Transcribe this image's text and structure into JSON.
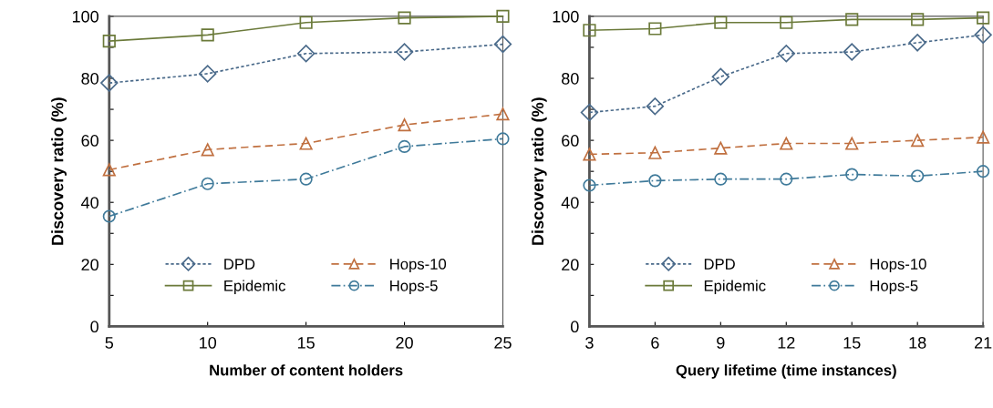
{
  "chart_data": [
    {
      "type": "line",
      "xlabel": "Number of content holders",
      "ylabel": "Discovery ratio (%)",
      "x": [
        5,
        10,
        15,
        20,
        25
      ],
      "xlim": [
        5,
        25
      ],
      "xticks": [
        5,
        10,
        15,
        20,
        25
      ],
      "ylim": [
        0,
        100
      ],
      "yticks": [
        0,
        {
          "value": 10,
          "label": null
        },
        20,
        {
          "value": 30,
          "label": null
        },
        40,
        {
          "value": 50,
          "label": null
        },
        60,
        {
          "value": 70,
          "label": null
        },
        80,
        {
          "value": 90,
          "label": null
        },
        100
      ],
      "grid": false,
      "legend": "bottom",
      "series": [
        {
          "name": "DPD",
          "color": "#4a6a8a",
          "marker": "diamond",
          "line_style": "dotted",
          "values": [
            78.5,
            81.5,
            88,
            88.5,
            91
          ]
        },
        {
          "name": "Epidemic",
          "color": "#6b7a3a",
          "marker": "square",
          "line_style": "solid",
          "values": [
            92,
            94,
            98,
            99.5,
            100
          ]
        },
        {
          "name": "Hops-10",
          "color": "#c07040",
          "marker": "triangle",
          "line_style": "dashed",
          "values": [
            50.5,
            57,
            59,
            65,
            68.5
          ]
        },
        {
          "name": "Hops-5",
          "color": "#3f7a9a",
          "marker": "circle",
          "line_style": "dashdot",
          "values": [
            35.5,
            46,
            47.5,
            58,
            60.5
          ]
        }
      ]
    },
    {
      "type": "line",
      "xlabel": "Query lifetime (time instances)",
      "ylabel": "Discovery ratio (%)",
      "x": [
        3,
        6,
        9,
        12,
        15,
        18,
        21
      ],
      "xlim": [
        3,
        21
      ],
      "xticks": [
        3,
        6,
        9,
        12,
        15,
        18,
        21
      ],
      "ylim": [
        0,
        100
      ],
      "yticks": [
        0,
        {
          "value": 10,
          "label": null
        },
        20,
        {
          "value": 30,
          "label": null
        },
        40,
        {
          "value": 50,
          "label": null
        },
        60,
        {
          "value": 70,
          "label": null
        },
        80,
        {
          "value": 90,
          "label": null
        },
        100
      ],
      "grid": false,
      "legend": "bottom",
      "series": [
        {
          "name": "DPD",
          "color": "#4a6a8a",
          "marker": "diamond",
          "line_style": "dotted",
          "values": [
            69,
            71,
            80.5,
            88,
            88.5,
            91.5,
            94
          ]
        },
        {
          "name": "Epidemic",
          "color": "#6b7a3a",
          "marker": "square",
          "line_style": "solid",
          "values": [
            95.5,
            96,
            98,
            98,
            99,
            99,
            99.5
          ]
        },
        {
          "name": "Hops-10",
          "color": "#c07040",
          "marker": "triangle",
          "line_style": "dashed",
          "values": [
            55.5,
            56,
            57.5,
            59,
            59,
            60,
            61
          ]
        },
        {
          "name": "Hops-5",
          "color": "#3f7a9a",
          "marker": "circle",
          "line_style": "dashdot",
          "values": [
            45.5,
            47,
            47.5,
            47.5,
            49,
            48.5,
            50
          ]
        }
      ]
    }
  ]
}
